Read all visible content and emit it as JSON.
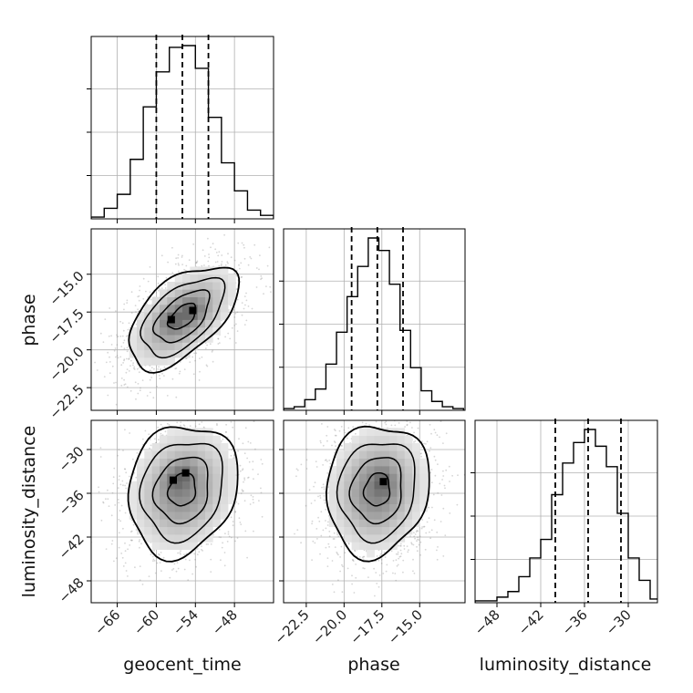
{
  "chart_data": {
    "type": "corner",
    "parameters": [
      "geocent_time",
      "phase",
      "luminosity_distance"
    ],
    "axis_labels": {
      "geocent_time": "geocent_time",
      "phase": "phase",
      "luminosity_distance": "luminosity_distance"
    },
    "ranges": {
      "geocent_time": [
        -70,
        -42
      ],
      "phase": [
        -24,
        -12
      ],
      "luminosity_distance": [
        -51,
        -26
      ]
    },
    "ticks": {
      "geocent_time": [
        {
          "v": -66,
          "t": "−66"
        },
        {
          "v": -60,
          "t": "−60"
        },
        {
          "v": -54,
          "t": "−54"
        },
        {
          "v": -48,
          "t": "−48"
        }
      ],
      "phase": [
        {
          "v": -22.5,
          "t": "−22.5"
        },
        {
          "v": -20.0,
          "t": "−20.0"
        },
        {
          "v": -17.5,
          "t": "−17.5"
        },
        {
          "v": -15.0,
          "t": "−15.0"
        }
      ],
      "luminosity_distance": [
        {
          "v": -48,
          "t": "−48"
        },
        {
          "v": -42,
          "t": "−42"
        },
        {
          "v": -36,
          "t": "−36"
        },
        {
          "v": -30,
          "t": "−30"
        }
      ]
    },
    "grid": true,
    "marginals": {
      "geocent_time": {
        "bin_edges": [
          -70,
          -68,
          -66,
          -64,
          -62,
          -60,
          -58,
          -56,
          -54,
          -52,
          -50,
          -48,
          -46,
          -44,
          -42
        ],
        "counts": [
          1,
          6,
          14,
          34,
          64,
          84,
          98,
          99,
          86,
          58,
          32,
          16,
          5,
          2
        ],
        "quantiles": [
          -60.0,
          -56.0,
          -52.0
        ]
      },
      "phase": {
        "bin_edges": [
          -24.0,
          -23.3,
          -22.6,
          -21.9,
          -21.2,
          -20.5,
          -19.8,
          -19.1,
          -18.4,
          -17.7,
          -17.0,
          -16.3,
          -15.6,
          -14.9,
          -14.2,
          -13.5,
          -12.8,
          -12.1
        ],
        "counts": [
          1,
          2,
          6,
          12,
          26,
          44,
          64,
          81,
          97,
          90,
          71,
          45,
          24,
          11,
          5,
          2,
          1
        ],
        "quantiles": [
          -19.5,
          -17.8,
          -16.1
        ]
      },
      "luminosity_distance": {
        "bin_edges": [
          -51.0,
          -49.5,
          -48.0,
          -46.5,
          -45.0,
          -43.5,
          -42.0,
          -40.5,
          -39.0,
          -37.5,
          -36.0,
          -34.5,
          -33.0,
          -31.5,
          -30.0,
          -28.5,
          -27.0,
          -25.5
        ],
        "counts": [
          1,
          1,
          3,
          6,
          14,
          24,
          34,
          58,
          75,
          86,
          93,
          84,
          73,
          48,
          24,
          12,
          2
        ],
        "quantiles": [
          -40.0,
          -35.5,
          -31.0
        ]
      }
    },
    "joint": [
      {
        "x": "geocent_time",
        "y": "phase",
        "mean": [
          -56.0,
          -17.8
        ],
        "sd": [
          4.2,
          1.7
        ],
        "rho": 0.55,
        "peaks": [
          [
            -57.7,
            -18.0
          ],
          [
            -54.4,
            -17.4
          ]
        ]
      },
      {
        "x": "geocent_time",
        "y": "luminosity_distance",
        "mean": [
          -56.0,
          -35.5
        ],
        "sd": [
          4.2,
          4.5
        ],
        "rho": 0.15,
        "peaks": [
          [
            -57.4,
            -34.2
          ],
          [
            -55.5,
            -33.2
          ]
        ]
      },
      {
        "x": "phase",
        "y": "luminosity_distance",
        "mean": [
          -17.8,
          -35.5
        ],
        "sd": [
          1.7,
          4.5
        ],
        "rho": 0.1,
        "peaks": [
          [
            -17.4,
            -34.4
          ]
        ]
      }
    ],
    "contour_levels_sigma": [
      0.5,
      1.0,
      1.5,
      2.0
    ]
  }
}
